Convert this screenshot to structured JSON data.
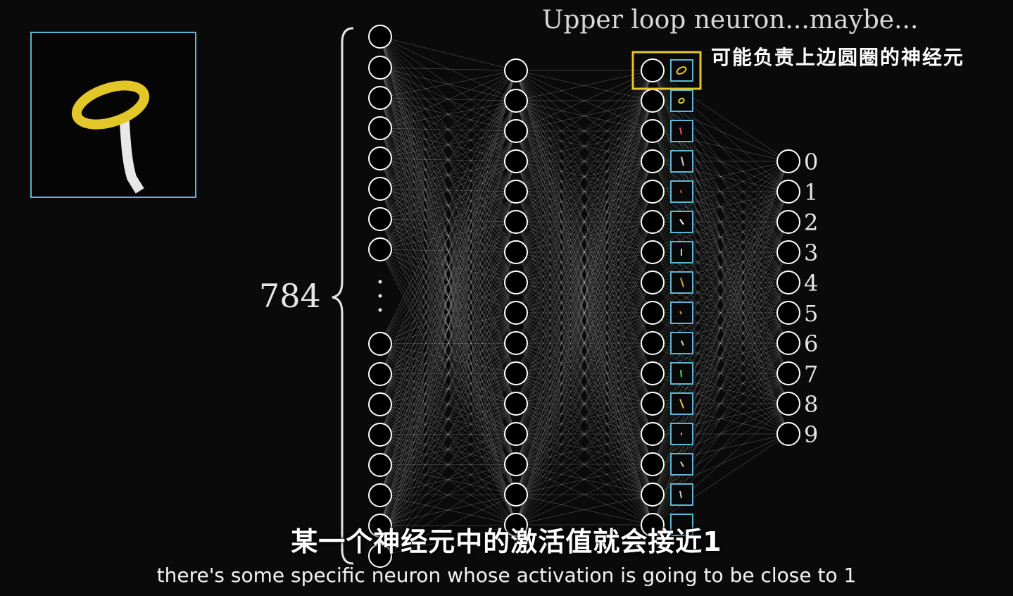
{
  "annotation": {
    "title_en": "Upper loop neuron...maybe...",
    "title_zh": "可能负责上边圆圈的神经元"
  },
  "input_layer": {
    "count_label": "784"
  },
  "output_layer": {
    "labels": [
      "0",
      "1",
      "2",
      "3",
      "4",
      "5",
      "6",
      "7",
      "8",
      "9"
    ]
  },
  "subtitles": {
    "zh": "某一个神经元中的激活值就会接近1",
    "en": "there's some specific neuron whose activation is going to be close to 1"
  },
  "colors": {
    "highlight": "#e3c728",
    "thumb_border": "#5fb6d6",
    "neuron_stroke": "#ffffff",
    "edge": "#bdbdbd"
  }
}
